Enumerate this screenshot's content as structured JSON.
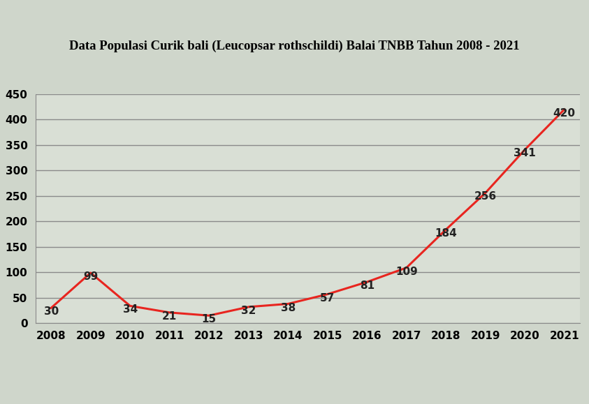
{
  "chart_data": {
    "type": "line",
    "title": "Data Populasi Curik bali (Leucopsar rothschildi) Balai TNBB Tahun 2008 - 2021",
    "categories": [
      "2008",
      "2009",
      "2010",
      "2011",
      "2012",
      "2013",
      "2014",
      "2015",
      "2016",
      "2017",
      "2018",
      "2019",
      "2020",
      "2021"
    ],
    "values": [
      30,
      99,
      34,
      21,
      15,
      32,
      38,
      57,
      81,
      109,
      184,
      256,
      341,
      420
    ],
    "color": "#e8251f",
    "ylim": [
      0,
      450
    ],
    "yticks": [
      0,
      50,
      100,
      150,
      200,
      250,
      300,
      350,
      400,
      450
    ],
    "grid": true,
    "data_labels": true
  }
}
